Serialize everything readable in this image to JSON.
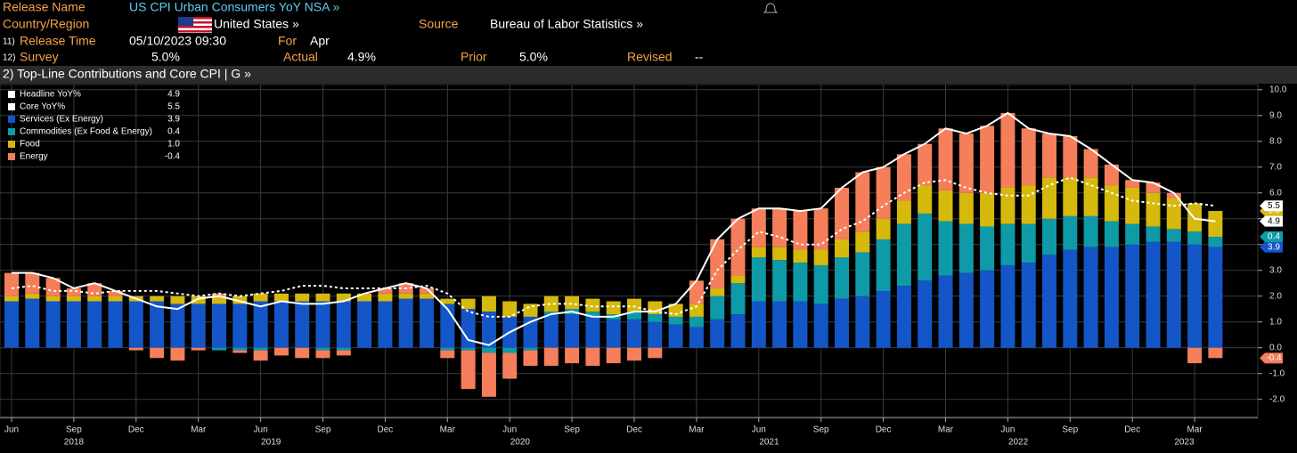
{
  "header": {
    "release_name_label": "Release Name",
    "release_name": "US CPI Urban Consumers YoY NSA »",
    "country_label": "Country/Region",
    "country": "United States »",
    "source_label": "Source",
    "source": "Bureau of Labor Statistics »",
    "release_time_num": "11)",
    "release_time_label": "Release Time",
    "release_time": "05/10/2023 09:30",
    "for_label": "For",
    "for_value": "Apr",
    "survey_num": "12)",
    "survey_label": "Survey",
    "survey": "5.0%",
    "actual_label": "Actual",
    "actual": "4.9%",
    "prior_label": "Prior",
    "prior": "5.0%",
    "revised_label": "Revised",
    "revised": "--",
    "section": "2) Top-Line Contributions and Core CPI | G »"
  },
  "chart_data": {
    "type": "bar",
    "categories": [
      "Jun",
      null,
      null,
      "Sep",
      null,
      null,
      "Dec",
      null,
      null,
      "Mar",
      null,
      null,
      "Jun",
      null,
      null,
      "Sep",
      null,
      null,
      "Dec",
      null,
      null,
      "Mar",
      null,
      null,
      "Jun",
      null,
      null,
      "Sep",
      null,
      null,
      "Dec",
      null,
      null,
      "Mar",
      null,
      null,
      "Jun",
      null,
      null,
      "Sep",
      null,
      null,
      "Dec",
      null,
      null,
      "Mar",
      null,
      null,
      "Jun",
      null,
      null,
      "Sep",
      null,
      null,
      "Dec",
      null,
      null,
      "Mar",
      null
    ],
    "years": [
      "2018",
      "2019",
      "2020",
      "2021",
      "2022",
      "2023"
    ],
    "ylim": [
      -2.7,
      10.2
    ],
    "yticks": [
      {
        "value": -2,
        "label": "-2.0"
      },
      {
        "value": -1,
        "label": "-1.0"
      },
      {
        "value": 0,
        "label": "0.0"
      },
      {
        "value": 1,
        "label": "1.0"
      },
      {
        "value": 2,
        "label": "2.0"
      },
      {
        "value": 3,
        "label": "3.0"
      },
      {
        "value": 4,
        "label": "4.0"
      },
      {
        "value": 5,
        "label": "5.0"
      },
      {
        "value": 6,
        "label": "6.0"
      },
      {
        "value": 7,
        "label": "7.0"
      },
      {
        "value": 8,
        "label": "8.0"
      },
      {
        "value": 9,
        "label": "9.0"
      },
      {
        "value": 10,
        "label": "10.0"
      }
    ],
    "grid": true,
    "stacked": true,
    "legend": "upper left",
    "series": [
      {
        "name": "Headline YoY%",
        "type": "line",
        "color": "#ffffff",
        "values": [
          2.9,
          2.9,
          2.7,
          2.3,
          2.5,
          2.2,
          1.9,
          1.6,
          1.5,
          1.9,
          2.0,
          1.8,
          1.6,
          1.8,
          1.7,
          1.7,
          1.8,
          2.1,
          2.3,
          2.5,
          2.3,
          1.5,
          0.3,
          0.1,
          0.6,
          1.0,
          1.3,
          1.4,
          1.2,
          1.2,
          1.4,
          1.4,
          1.7,
          2.6,
          4.2,
          5.0,
          5.4,
          5.4,
          5.3,
          5.4,
          6.2,
          6.8,
          7.0,
          7.5,
          7.9,
          8.5,
          8.3,
          8.6,
          9.1,
          8.5,
          8.3,
          8.2,
          7.7,
          7.1,
          6.5,
          6.4,
          6.0,
          5.0,
          4.9
        ],
        "value_labels": [
          null,
          null,
          null,
          null,
          null,
          null,
          null,
          null,
          null,
          null,
          null,
          null,
          null,
          null,
          null,
          null,
          null,
          null,
          null,
          null,
          null,
          null,
          null,
          null,
          null,
          null,
          null,
          null,
          null,
          null,
          null,
          null,
          null,
          null,
          null,
          null,
          null,
          null,
          null,
          null,
          null,
          null,
          null,
          null,
          null,
          null,
          null,
          null,
          null,
          null,
          null,
          null,
          null,
          null,
          null,
          null,
          null,
          null,
          "4.9"
        ]
      },
      {
        "name": "Core YoY%",
        "type": "line",
        "dashed": true,
        "color": "#ffffff",
        "values": [
          2.3,
          2.4,
          2.2,
          2.2,
          2.1,
          2.2,
          2.2,
          2.2,
          2.1,
          2.0,
          2.1,
          2.0,
          2.1,
          2.2,
          2.4,
          2.4,
          2.3,
          2.3,
          2.3,
          2.3,
          2.4,
          2.1,
          1.4,
          1.2,
          1.2,
          1.6,
          1.7,
          1.7,
          1.6,
          1.6,
          1.6,
          1.4,
          1.3,
          1.6,
          3.0,
          3.8,
          4.5,
          4.3,
          4.0,
          4.0,
          4.6,
          4.9,
          5.5,
          6.0,
          6.4,
          6.5,
          6.2,
          6.0,
          5.9,
          5.9,
          6.3,
          6.6,
          6.3,
          6.0,
          5.7,
          5.6,
          5.5,
          5.6,
          5.5
        ],
        "value_labels": [
          null,
          null,
          null,
          null,
          null,
          null,
          null,
          null,
          null,
          null,
          null,
          null,
          null,
          null,
          null,
          null,
          null,
          null,
          null,
          null,
          null,
          null,
          null,
          null,
          null,
          null,
          null,
          null,
          null,
          null,
          null,
          null,
          null,
          null,
          null,
          null,
          null,
          null,
          null,
          null,
          null,
          null,
          null,
          null,
          null,
          null,
          null,
          null,
          null,
          null,
          null,
          null,
          null,
          null,
          null,
          null,
          null,
          null,
          "5.5"
        ]
      },
      {
        "name": "Services (Ex Energy)",
        "type": "bar",
        "color": "#1456c8",
        "values": [
          1.8,
          1.9,
          1.8,
          1.8,
          1.8,
          1.8,
          1.8,
          1.8,
          1.7,
          1.7,
          1.7,
          1.7,
          1.8,
          1.8,
          1.8,
          1.8,
          1.8,
          1.8,
          1.8,
          1.9,
          1.9,
          1.7,
          1.5,
          1.4,
          1.2,
          1.2,
          1.3,
          1.3,
          1.2,
          1.1,
          1.1,
          1.0,
          0.9,
          0.8,
          1.1,
          1.3,
          1.8,
          1.8,
          1.8,
          1.7,
          1.9,
          2.0,
          2.2,
          2.4,
          2.6,
          2.8,
          2.9,
          3.0,
          3.2,
          3.3,
          3.6,
          3.8,
          3.9,
          3.9,
          4.0,
          4.1,
          4.1,
          4.0,
          3.9
        ],
        "value_labels": [
          null,
          null,
          null,
          null,
          null,
          null,
          null,
          null,
          null,
          null,
          null,
          null,
          null,
          null,
          null,
          null,
          null,
          null,
          null,
          null,
          null,
          null,
          null,
          null,
          null,
          null,
          null,
          null,
          null,
          null,
          null,
          null,
          null,
          null,
          null,
          null,
          null,
          null,
          null,
          null,
          null,
          null,
          null,
          null,
          null,
          null,
          null,
          null,
          null,
          null,
          null,
          null,
          null,
          null,
          null,
          null,
          null,
          null,
          "3.9"
        ]
      },
      {
        "name": "Commodities (Ex Food & Energy)",
        "type": "bar",
        "color": "#0f9aa8",
        "values": [
          0.0,
          0.0,
          0.0,
          0.0,
          0.0,
          0.0,
          0.0,
          0.0,
          0.0,
          0.0,
          -0.1,
          -0.1,
          -0.1,
          0.0,
          0.0,
          -0.1,
          -0.1,
          0.0,
          0.0,
          0.0,
          0.0,
          -0.1,
          -0.1,
          -0.2,
          -0.2,
          -0.1,
          0.1,
          0.2,
          0.2,
          0.2,
          0.3,
          0.3,
          0.3,
          0.4,
          0.9,
          1.2,
          1.7,
          1.6,
          1.5,
          1.5,
          1.6,
          1.7,
          2.0,
          2.4,
          2.6,
          2.1,
          1.9,
          1.7,
          1.6,
          1.5,
          1.4,
          1.3,
          1.2,
          1.0,
          0.8,
          0.6,
          0.5,
          0.5,
          0.4
        ],
        "value_labels": [
          null,
          null,
          null,
          null,
          null,
          null,
          null,
          null,
          null,
          null,
          null,
          null,
          null,
          null,
          null,
          null,
          null,
          null,
          null,
          null,
          null,
          null,
          null,
          null,
          null,
          null,
          null,
          null,
          null,
          null,
          null,
          null,
          null,
          null,
          null,
          null,
          null,
          null,
          null,
          null,
          null,
          null,
          null,
          null,
          null,
          null,
          null,
          null,
          null,
          null,
          null,
          null,
          null,
          null,
          null,
          null,
          null,
          null,
          "0.4"
        ]
      },
      {
        "name": "Food",
        "type": "bar",
        "color": "#d6b90d",
        "values": [
          0.2,
          0.2,
          0.2,
          0.2,
          0.2,
          0.2,
          0.2,
          0.2,
          0.3,
          0.3,
          0.3,
          0.3,
          0.3,
          0.3,
          0.3,
          0.3,
          0.3,
          0.3,
          0.3,
          0.2,
          0.2,
          0.2,
          0.4,
          0.6,
          0.6,
          0.5,
          0.6,
          0.5,
          0.5,
          0.5,
          0.5,
          0.5,
          0.5,
          0.5,
          0.3,
          0.3,
          0.4,
          0.5,
          0.5,
          0.6,
          0.7,
          0.8,
          0.8,
          0.9,
          1.1,
          1.2,
          1.2,
          1.3,
          1.4,
          1.5,
          1.6,
          1.5,
          1.5,
          1.4,
          1.4,
          1.3,
          1.2,
          1.1,
          1.0
        ],
        "value_labels": [
          null,
          null,
          null,
          null,
          null,
          null,
          null,
          null,
          null,
          null,
          null,
          null,
          null,
          null,
          null,
          null,
          null,
          null,
          null,
          null,
          null,
          null,
          null,
          null,
          null,
          null,
          null,
          null,
          null,
          null,
          null,
          null,
          null,
          null,
          null,
          null,
          null,
          null,
          null,
          null,
          null,
          null,
          null,
          null,
          null,
          null,
          null,
          null,
          null,
          null,
          null,
          null,
          null,
          null,
          null,
          null,
          null,
          null,
          "1.0"
        ]
      },
      {
        "name": "Energy",
        "type": "bar",
        "color": "#f57e5b",
        "values": [
          0.9,
          0.8,
          0.7,
          0.3,
          0.5,
          0.2,
          -0.1,
          -0.4,
          -0.5,
          -0.1,
          0.1,
          -0.1,
          -0.4,
          -0.3,
          -0.4,
          -0.3,
          -0.2,
          0.0,
          0.2,
          0.4,
          0.2,
          -0.3,
          -1.5,
          -1.7,
          -1.0,
          -0.6,
          -0.7,
          -0.6,
          -0.7,
          -0.6,
          -0.5,
          -0.4,
          0.0,
          0.9,
          1.9,
          2.2,
          1.5,
          1.5,
          1.5,
          1.6,
          2.0,
          2.3,
          2.0,
          1.8,
          1.6,
          2.4,
          2.3,
          2.6,
          2.9,
          2.2,
          1.7,
          1.6,
          1.1,
          0.8,
          0.3,
          0.4,
          0.2,
          -0.6,
          -0.4
        ],
        "value_labels": [
          null,
          null,
          null,
          null,
          null,
          null,
          null,
          null,
          null,
          null,
          null,
          null,
          null,
          null,
          null,
          null,
          null,
          null,
          null,
          null,
          null,
          null,
          null,
          null,
          null,
          null,
          null,
          null,
          null,
          null,
          null,
          null,
          null,
          null,
          null,
          null,
          null,
          null,
          null,
          null,
          null,
          null,
          null,
          null,
          null,
          null,
          null,
          null,
          null,
          null,
          null,
          null,
          null,
          null,
          null,
          null,
          null,
          null,
          "-0.4"
        ]
      }
    ]
  }
}
